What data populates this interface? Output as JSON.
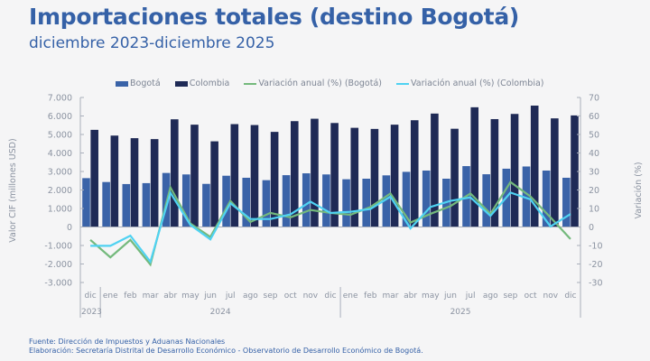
{
  "chart_data": {
    "type": "bar",
    "title": "Importaciones totales (destino Bogotá)",
    "subtitle": "diciembre 2023-diciembre 2025",
    "ylabel": "Valor CIF (millones USD)",
    "y2label": "Variación (%)",
    "ylim": [
      -3000,
      7000
    ],
    "y2lim": [
      -30,
      70
    ],
    "yticks": [
      "7.000",
      "6.000",
      "5.000",
      "4.000",
      "3.000",
      "2.000",
      "1.000",
      "0",
      "-1.000",
      "-2.000",
      "-3.000"
    ],
    "ytick_values": [
      7000,
      6000,
      5000,
      4000,
      3000,
      2000,
      1000,
      0,
      -1000,
      -2000,
      -3000
    ],
    "y2ticks": [
      "70",
      "60",
      "50",
      "40",
      "30",
      "20",
      "10",
      "0",
      "-10",
      "-20",
      "-30"
    ],
    "y2tick_values": [
      70,
      60,
      50,
      40,
      30,
      20,
      10,
      0,
      -10,
      -20,
      -30
    ],
    "categories": [
      "dic",
      "ene",
      "feb",
      "mar",
      "abr",
      "may",
      "jun",
      "jul",
      "ago",
      "sep",
      "oct",
      "nov",
      "dic",
      "ene",
      "feb",
      "mar",
      "abr",
      "may",
      "jun",
      "jul",
      "ago",
      "sep",
      "oct",
      "nov",
      "dic"
    ],
    "year_groups": [
      {
        "label": "2023",
        "count": 1
      },
      {
        "label": "2024",
        "count": 12
      },
      {
        "label": "2025",
        "count": 12
      }
    ],
    "legend_position": "top",
    "series": [
      {
        "name": "Bogotá",
        "kind": "bar",
        "axis": "left",
        "color": "#3a63a8",
        "values": [
          2640,
          2430,
          2320,
          2370,
          2920,
          2840,
          2330,
          2770,
          2660,
          2530,
          2800,
          2900,
          2840,
          2580,
          2610,
          2790,
          2980,
          3050,
          2610,
          3290,
          2850,
          3150,
          3270,
          3050,
          2660
        ]
      },
      {
        "name": "Colombia",
        "kind": "bar",
        "axis": "left",
        "color": "#1f2a56",
        "values": [
          5250,
          4940,
          4800,
          4750,
          5820,
          5530,
          4630,
          5560,
          5510,
          5140,
          5720,
          5850,
          5620,
          5360,
          5300,
          5530,
          5770,
          6130,
          5310,
          6470,
          5830,
          6110,
          6560,
          5870,
          6030
        ]
      },
      {
        "name": "Variación anual (%) (Bogotá)",
        "kind": "line",
        "axis": "right",
        "color": "#74b97c",
        "values": [
          -7.0,
          -16.4,
          -7.0,
          -20.3,
          21.4,
          1.9,
          -5.4,
          14.1,
          2.7,
          7.6,
          5.2,
          9.2,
          7.6,
          6.6,
          10.8,
          18.1,
          2.4,
          7.1,
          11.3,
          18.1,
          7.1,
          24.3,
          16.5,
          5.2,
          -6.5
        ]
      },
      {
        "name": "Variación anual (%) (Colombia)",
        "kind": "line",
        "axis": "right",
        "color": "#4fd2f2",
        "values": [
          -10.2,
          -10.2,
          -4.7,
          -18.8,
          18.5,
          1.1,
          -6.7,
          12.8,
          4.3,
          4.3,
          6.8,
          13.7,
          7.6,
          8.2,
          9.7,
          16.4,
          -0.8,
          10.8,
          14.1,
          16.0,
          6.0,
          18.6,
          14.9,
          0.3,
          7.0
        ]
      }
    ]
  },
  "footer": {
    "source": "Fuente: Dirección de Impuestos y Aduanas Nacionales",
    "credit": "Elaboración: Secretaría Distrital de Desarrollo Económico - Observatorio de Desarrollo Económico de Bogotá."
  }
}
